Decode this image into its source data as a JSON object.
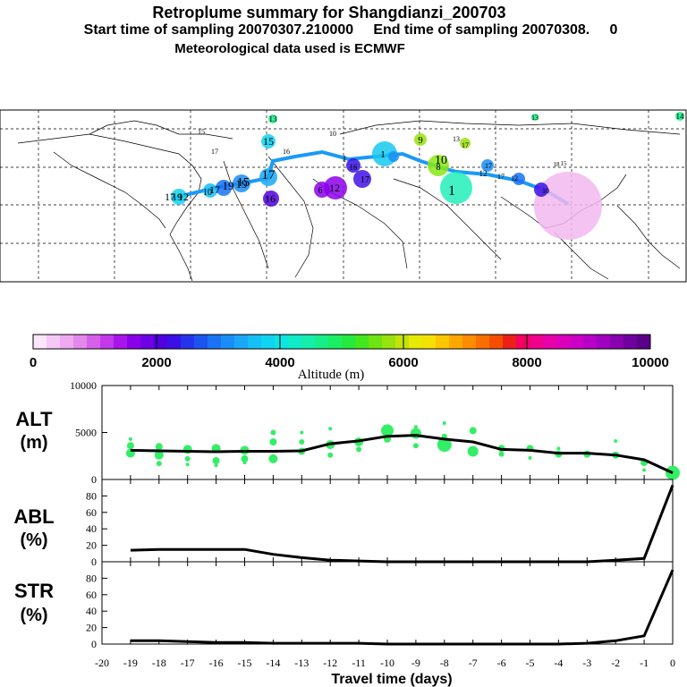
{
  "header": {
    "title": "Retroplume summary for Shangdianzi_200703",
    "sampling": "Start time of sampling 20070307.210000     End time of sampling 20070308.     0",
    "met": "Meteorological data used is ECMWF"
  },
  "map_labels": [
    "13",
    "14",
    "13",
    "15",
    "10",
    "17",
    "15",
    "19",
    "17",
    "12",
    "10",
    "16",
    "17",
    "1",
    "16",
    "9",
    "10",
    "1",
    "6",
    "12",
    "1",
    "17",
    "12",
    "10",
    "8",
    "16",
    "17",
    "15",
    "13",
    "17",
    "12",
    "19",
    "17",
    "19",
    "17",
    "15",
    "18"
  ],
  "colorbar": {
    "title": "Altitude (m)",
    "ticks": [
      "0",
      "2000",
      "4000",
      "6000",
      "8000",
      "10000"
    ],
    "colors": [
      "#fbe6fb",
      "#f5c8f5",
      "#eeaaf0",
      "#e488ec",
      "#d660ea",
      "#c238ea",
      "#a914ea",
      "#8b00ea",
      "#6e00e6",
      "#5000e0",
      "#3a10e6",
      "#2434ec",
      "#1c54f0",
      "#1a72f4",
      "#1a8ef6",
      "#1aa8f6",
      "#16c0f4",
      "#10d4f0",
      "#0ee4e2",
      "#10ecc8",
      "#14eeaa",
      "#18ee88",
      "#1cee64",
      "#24ea40",
      "#44e61c",
      "#6ee412",
      "#98e20e",
      "#c2e40a",
      "#e6ea06",
      "#f6e000",
      "#fcc600",
      "#fca800",
      "#fc8c00",
      "#fa6e00",
      "#f44e00",
      "#ec2018",
      "#f40060",
      "#f0008c",
      "#e800a8",
      "#dc00b8",
      "#cc00c4",
      "#b800c8",
      "#a000c0",
      "#8800b0",
      "#70009e",
      "#5a0088"
    ]
  },
  "chart_data": [
    {
      "type": "line",
      "ylabel": "ALT",
      "yunit": "(m)",
      "ylim": [
        0,
        10000
      ],
      "yticks": [
        "0",
        "5000",
        "10000"
      ],
      "x": [
        -19,
        -18,
        -17,
        -16,
        -15,
        -14,
        -13,
        -12,
        -11,
        -10,
        -9,
        -8,
        -7,
        -6,
        -5,
        -4,
        -3,
        -2,
        -1,
        0
      ],
      "values": [
        3100,
        3050,
        3000,
        2950,
        3000,
        3000,
        3050,
        3800,
        4100,
        4600,
        4700,
        4300,
        4000,
        3200,
        3100,
        2800,
        2800,
        2600,
        2100,
        700
      ],
      "scatter": [
        [
          -19,
          2800,
          5
        ],
        [
          -19,
          3600,
          4
        ],
        [
          -19,
          4300,
          2
        ],
        [
          -18,
          2600,
          5
        ],
        [
          -18,
          3500,
          4
        ],
        [
          -18,
          1700,
          3
        ],
        [
          -17,
          3200,
          5
        ],
        [
          -17,
          2200,
          3
        ],
        [
          -17,
          1600,
          2
        ],
        [
          -16,
          3300,
          5
        ],
        [
          -16,
          2000,
          4
        ],
        [
          -16,
          1500,
          2
        ],
        [
          -15,
          3100,
          5
        ],
        [
          -15,
          2200,
          4
        ],
        [
          -15,
          1800,
          2
        ],
        [
          -14,
          2200,
          5
        ],
        [
          -14,
          4000,
          4
        ],
        [
          -14,
          5000,
          3
        ],
        [
          -13,
          3000,
          4
        ],
        [
          -13,
          4000,
          3
        ],
        [
          -13,
          5000,
          2
        ],
        [
          -12,
          3700,
          5
        ],
        [
          -12,
          2600,
          3
        ],
        [
          -12,
          5400,
          2
        ],
        [
          -11,
          4000,
          5
        ],
        [
          -11,
          3200,
          3
        ],
        [
          -10,
          5200,
          7
        ],
        [
          -10,
          4300,
          4
        ],
        [
          -9,
          4900,
          6
        ],
        [
          -9,
          3600,
          3
        ],
        [
          -9,
          5600,
          2
        ],
        [
          -8,
          3700,
          8
        ],
        [
          -8,
          4600,
          3
        ],
        [
          -8,
          6000,
          2
        ],
        [
          -7,
          3000,
          6
        ],
        [
          -7,
          5200,
          4
        ],
        [
          -6,
          3300,
          4
        ],
        [
          -6,
          2700,
          3
        ],
        [
          -5,
          3300,
          4
        ],
        [
          -5,
          2300,
          2
        ],
        [
          -4,
          2700,
          4
        ],
        [
          -4,
          3300,
          2
        ],
        [
          -3,
          2700,
          4
        ],
        [
          -2,
          2600,
          4
        ],
        [
          -2,
          4100,
          2
        ],
        [
          -1,
          1800,
          4
        ],
        [
          -1,
          1000,
          2
        ],
        [
          0,
          700,
          8
        ]
      ]
    },
    {
      "type": "line",
      "ylabel": "ABL",
      "yunit": "(%)",
      "ylim": [
        0,
        100
      ],
      "yticks": [
        "0",
        "20",
        "40",
        "60",
        "80"
      ],
      "x": [
        -19,
        -18,
        -17,
        -16,
        -15,
        -14,
        -13,
        -12,
        -11,
        -10,
        -9,
        -8,
        -7,
        -6,
        -5,
        -4,
        -3,
        -2,
        -1,
        0
      ],
      "values": [
        14,
        15,
        15,
        15,
        15,
        9,
        5,
        2,
        1,
        0,
        0,
        0,
        0,
        0,
        0,
        0,
        0,
        2,
        4,
        93
      ]
    },
    {
      "type": "line",
      "ylabel": "STR",
      "yunit": "(%)",
      "ylim": [
        0,
        100
      ],
      "yticks": [
        "0",
        "20",
        "40",
        "60",
        "80"
      ],
      "x": [
        -19,
        -18,
        -17,
        -16,
        -15,
        -14,
        -13,
        -12,
        -11,
        -10,
        -9,
        -8,
        -7,
        -6,
        -5,
        -4,
        -3,
        -2,
        -1,
        0
      ],
      "values": [
        4,
        4,
        3,
        2,
        2,
        1,
        1,
        1,
        1,
        0,
        0,
        0,
        0,
        0,
        0,
        0,
        1,
        4,
        10,
        90
      ]
    }
  ],
  "xaxis": {
    "label": "Travel time (days)",
    "ticks": [
      "-20",
      "-19",
      "-18",
      "-17",
      "-16",
      "-15",
      "-14",
      "-13",
      "-12",
      "-11",
      "-10",
      "-9",
      "-8",
      "-7",
      "-6",
      "-5",
      "-4",
      "-3",
      "-2",
      "-1",
      "0"
    ]
  },
  "colors": {
    "line": "#000000",
    "dots": "#33ee66"
  }
}
